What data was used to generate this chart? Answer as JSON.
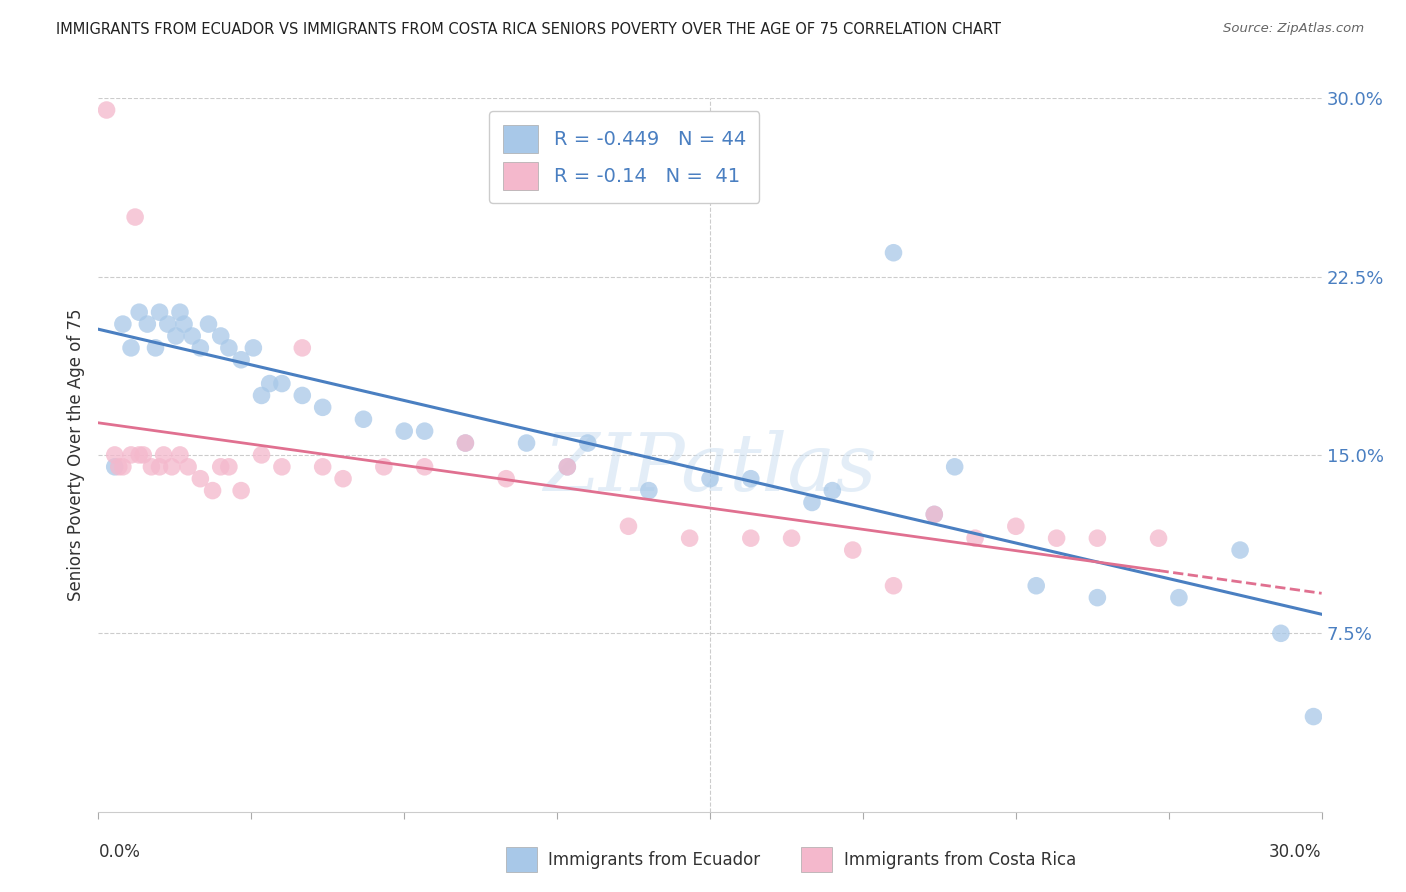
{
  "title": "IMMIGRANTS FROM ECUADOR VS IMMIGRANTS FROM COSTA RICA SENIORS POVERTY OVER THE AGE OF 75 CORRELATION CHART",
  "source": "Source: ZipAtlas.com",
  "ylabel": "Seniors Poverty Over the Age of 75",
  "xlim": [
    0.0,
    30.0
  ],
  "ylim": [
    0.0,
    30.0
  ],
  "yticks": [
    7.5,
    15.0,
    22.5,
    30.0
  ],
  "xticks_minor": [
    3.75,
    7.5,
    11.25,
    15.0,
    18.75,
    22.5,
    26.25,
    30.0
  ],
  "ecuador_R": -0.449,
  "ecuador_N": 44,
  "costarica_R": -0.14,
  "costarica_N": 41,
  "ecuador_color": "#a8c8e8",
  "costarica_color": "#f4b8cc",
  "ecuador_line_color": "#4a7fc1",
  "costarica_line_color": "#e07090",
  "watermark": "ZIPatlas",
  "ecuador_scatter_x": [
    0.4,
    0.6,
    0.8,
    1.0,
    1.2,
    1.4,
    1.5,
    1.7,
    1.9,
    2.0,
    2.1,
    2.3,
    2.5,
    2.7,
    3.0,
    3.2,
    3.5,
    3.8,
    4.0,
    4.2,
    4.5,
    5.0,
    5.5,
    6.5,
    7.5,
    8.0,
    9.0,
    10.5,
    11.5,
    12.0,
    13.5,
    15.0,
    16.0,
    17.5,
    18.0,
    19.5,
    20.5,
    21.0,
    23.0,
    24.5,
    26.5,
    28.0,
    29.0,
    29.8
  ],
  "ecuador_scatter_y": [
    14.5,
    20.5,
    19.5,
    21.0,
    20.5,
    19.5,
    21.0,
    20.5,
    20.0,
    21.0,
    20.5,
    20.0,
    19.5,
    20.5,
    20.0,
    19.5,
    19.0,
    19.5,
    17.5,
    18.0,
    18.0,
    17.5,
    17.0,
    16.5,
    16.0,
    16.0,
    15.5,
    15.5,
    14.5,
    15.5,
    13.5,
    14.0,
    14.0,
    13.0,
    13.5,
    23.5,
    12.5,
    14.5,
    9.5,
    9.0,
    9.0,
    11.0,
    7.5,
    4.0
  ],
  "costarica_scatter_x": [
    0.2,
    0.4,
    0.5,
    0.6,
    0.8,
    0.9,
    1.0,
    1.1,
    1.3,
    1.5,
    1.6,
    1.8,
    2.0,
    2.2,
    2.5,
    2.8,
    3.0,
    3.2,
    3.5,
    4.0,
    4.5,
    5.0,
    5.5,
    6.0,
    7.0,
    8.0,
    9.0,
    10.0,
    11.5,
    13.0,
    14.5,
    16.0,
    17.0,
    18.5,
    19.5,
    20.5,
    21.5,
    22.5,
    23.5,
    24.5,
    26.0
  ],
  "costarica_scatter_y": [
    29.5,
    15.0,
    14.5,
    14.5,
    15.0,
    25.0,
    15.0,
    15.0,
    14.5,
    14.5,
    15.0,
    14.5,
    15.0,
    14.5,
    14.0,
    13.5,
    14.5,
    14.5,
    13.5,
    15.0,
    14.5,
    19.5,
    14.5,
    14.0,
    14.5,
    14.5,
    15.5,
    14.0,
    14.5,
    12.0,
    11.5,
    11.5,
    11.5,
    11.0,
    9.5,
    12.5,
    11.5,
    12.0,
    11.5,
    11.5,
    11.5
  ]
}
